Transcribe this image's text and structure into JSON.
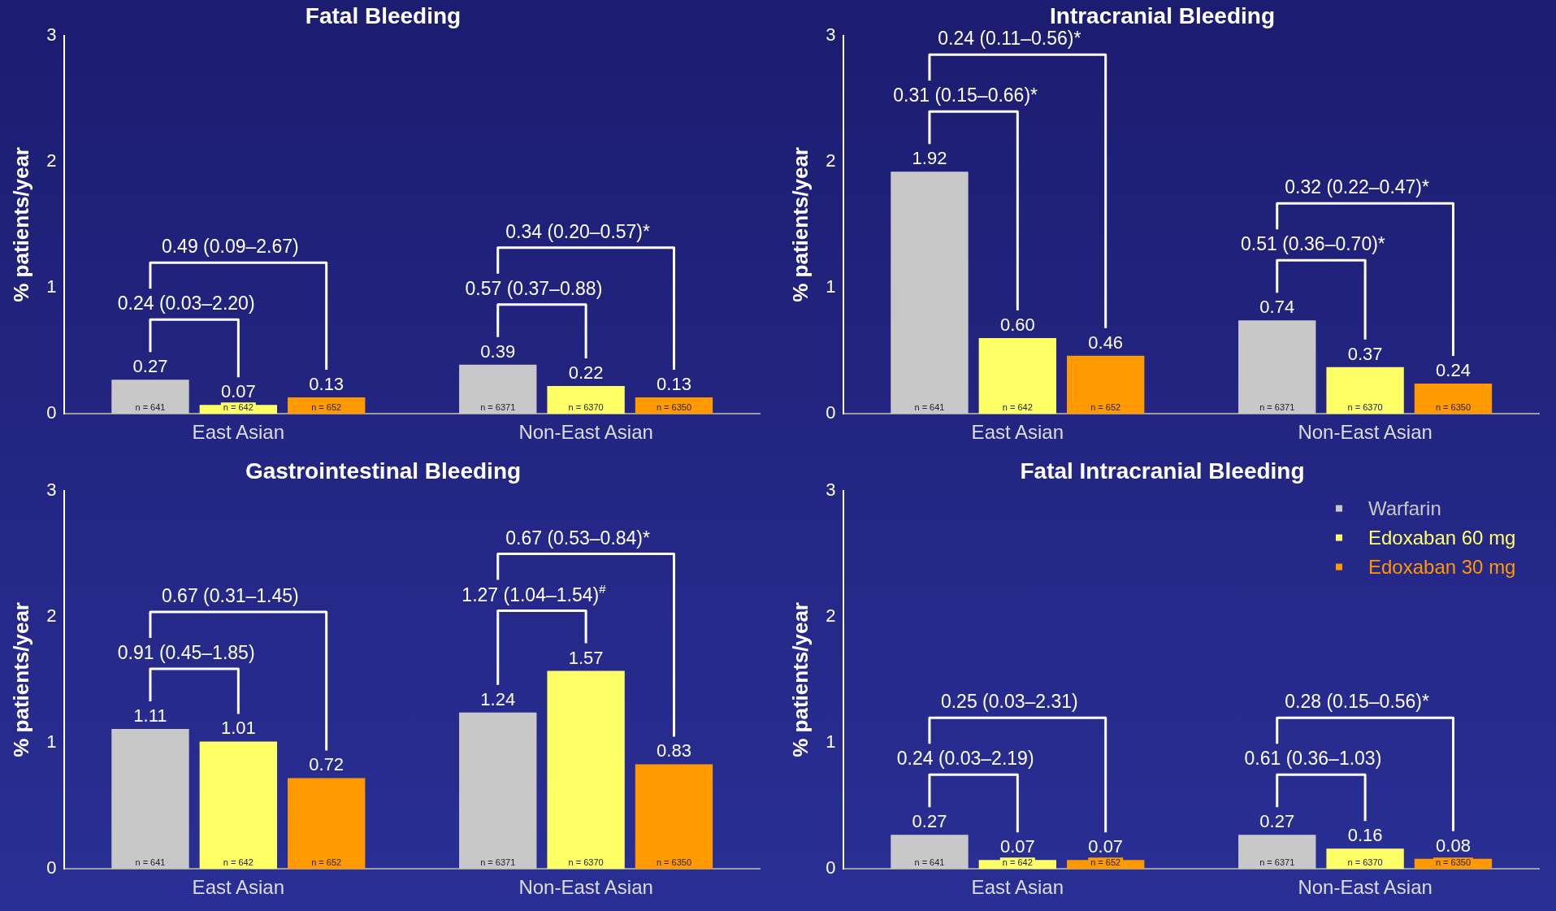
{
  "chart_data": [
    {
      "type": "bar",
      "title": "Fatal Bleeding",
      "ylabel": "% patients/year",
      "categories": [
        "East Asian",
        "Non-East Asian"
      ],
      "series": [
        {
          "color": "#c8c8c8",
          "values": [
            0.27,
            0.39
          ],
          "value_labels": [
            "0.27",
            "0.39"
          ]
        },
        {
          "color": "#ffff66",
          "values": [
            0.07,
            0.22
          ],
          "value_labels": [
            "0.07",
            "0.22"
          ]
        },
        {
          "color": "#ff9900",
          "values": [
            0.13,
            0.13
          ],
          "value_labels": [
            "0.13",
            "0.13"
          ]
        }
      ],
      "ylim": [
        0,
        3
      ],
      "yticks": [
        0,
        1,
        2,
        3
      ],
      "legend": false,
      "grid": false,
      "annotations": [
        "n = 641",
        "n = 642",
        "n = 652",
        "n = 6371",
        "n = 6370",
        "n = 6350",
        "0.24 (0.03–2.20)",
        "0.49 (0.09–2.67)",
        "0.57 (0.37–0.88)",
        "0.34 (0.20–0.57)*"
      ]
    },
    {
      "type": "bar",
      "title": "Intracranial Bleeding",
      "ylabel": "% patients/year",
      "categories": [
        "East Asian",
        "Non-East Asian"
      ],
      "series": [
        {
          "color": "#c8c8c8",
          "values": [
            1.92,
            0.74
          ],
          "value_labels": [
            "1.92",
            "0.74"
          ]
        },
        {
          "color": "#ffff66",
          "values": [
            0.6,
            0.37
          ],
          "value_labels": [
            "0.60",
            "0.37"
          ]
        },
        {
          "color": "#ff9900",
          "values": [
            0.46,
            0.24
          ],
          "value_labels": [
            "0.46",
            "0.24"
          ]
        }
      ],
      "ylim": [
        0,
        3
      ],
      "yticks": [
        0,
        1,
        2,
        3
      ],
      "legend": false,
      "grid": false,
      "annotations": [
        "n = 641",
        "n = 642",
        "n = 652",
        "n = 6371",
        "n = 6370",
        "n = 6350",
        "0.31 (0.15–0.66)*",
        "0.24 (0.11–0.56)*",
        "0.51 (0.36–0.70)*",
        "0.32 (0.22–0.47)*"
      ]
    },
    {
      "type": "bar",
      "title": "Gastrointestinal Bleeding",
      "ylabel": "% patients/year",
      "categories": [
        "East Asian",
        "Non-East Asian"
      ],
      "series": [
        {
          "color": "#c8c8c8",
          "values": [
            1.11,
            1.24
          ],
          "value_labels": [
            "1.11",
            "1.24"
          ]
        },
        {
          "color": "#ffff66",
          "values": [
            1.01,
            1.57
          ],
          "value_labels": [
            "1.01",
            "1.57"
          ]
        },
        {
          "color": "#ff9900",
          "values": [
            0.72,
            0.83
          ],
          "value_labels": [
            "0.72",
            "0.83"
          ]
        }
      ],
      "ylim": [
        0,
        3
      ],
      "yticks": [
        0,
        1,
        2,
        3
      ],
      "legend": false,
      "grid": false,
      "annotations": [
        "n = 641",
        "n = 642",
        "n = 652",
        "n = 6371",
        "n = 6370",
        "n = 6350",
        "0.91 (0.45–1.85)",
        "0.67 (0.31–1.45)",
        "1.27 (1.04–1.54)$^{#}$",
        "0.67 (0.53–0.84)*"
      ]
    },
    {
      "type": "bar",
      "title": "Fatal Intracranial Bleeding",
      "ylabel": "% patients/year",
      "categories": [
        "East Asian",
        "Non-East Asian"
      ],
      "series": [
        {
          "name": "Warfarin",
          "color": "#c8c8c8",
          "values": [
            0.27,
            0.27
          ],
          "value_labels": [
            "0.27",
            "0.27"
          ]
        },
        {
          "name": "Edoxaban 60 mg",
          "color": "#ffff66",
          "values": [
            0.07,
            0.16
          ],
          "value_labels": [
            "0.07",
            "0.16"
          ]
        },
        {
          "name": "Edoxaban 30 mg",
          "color": "#ff9900",
          "values": [
            0.07,
            0.08
          ],
          "value_labels": [
            "0.07",
            "0.08"
          ]
        }
      ],
      "ylim": [
        0,
        3
      ],
      "yticks": [
        0,
        1,
        2,
        3
      ],
      "legend": "top right",
      "grid": false,
      "annotations": [
        "n = 641",
        "n = 642",
        "n = 652",
        "n = 6371",
        "n = 6370",
        "n = 6350",
        "0.24 (0.03–2.19)",
        "0.25 (0.03–2.31)",
        "0.61 (0.36–1.03)",
        "0.28 (0.15–0.56)*"
      ]
    }
  ]
}
